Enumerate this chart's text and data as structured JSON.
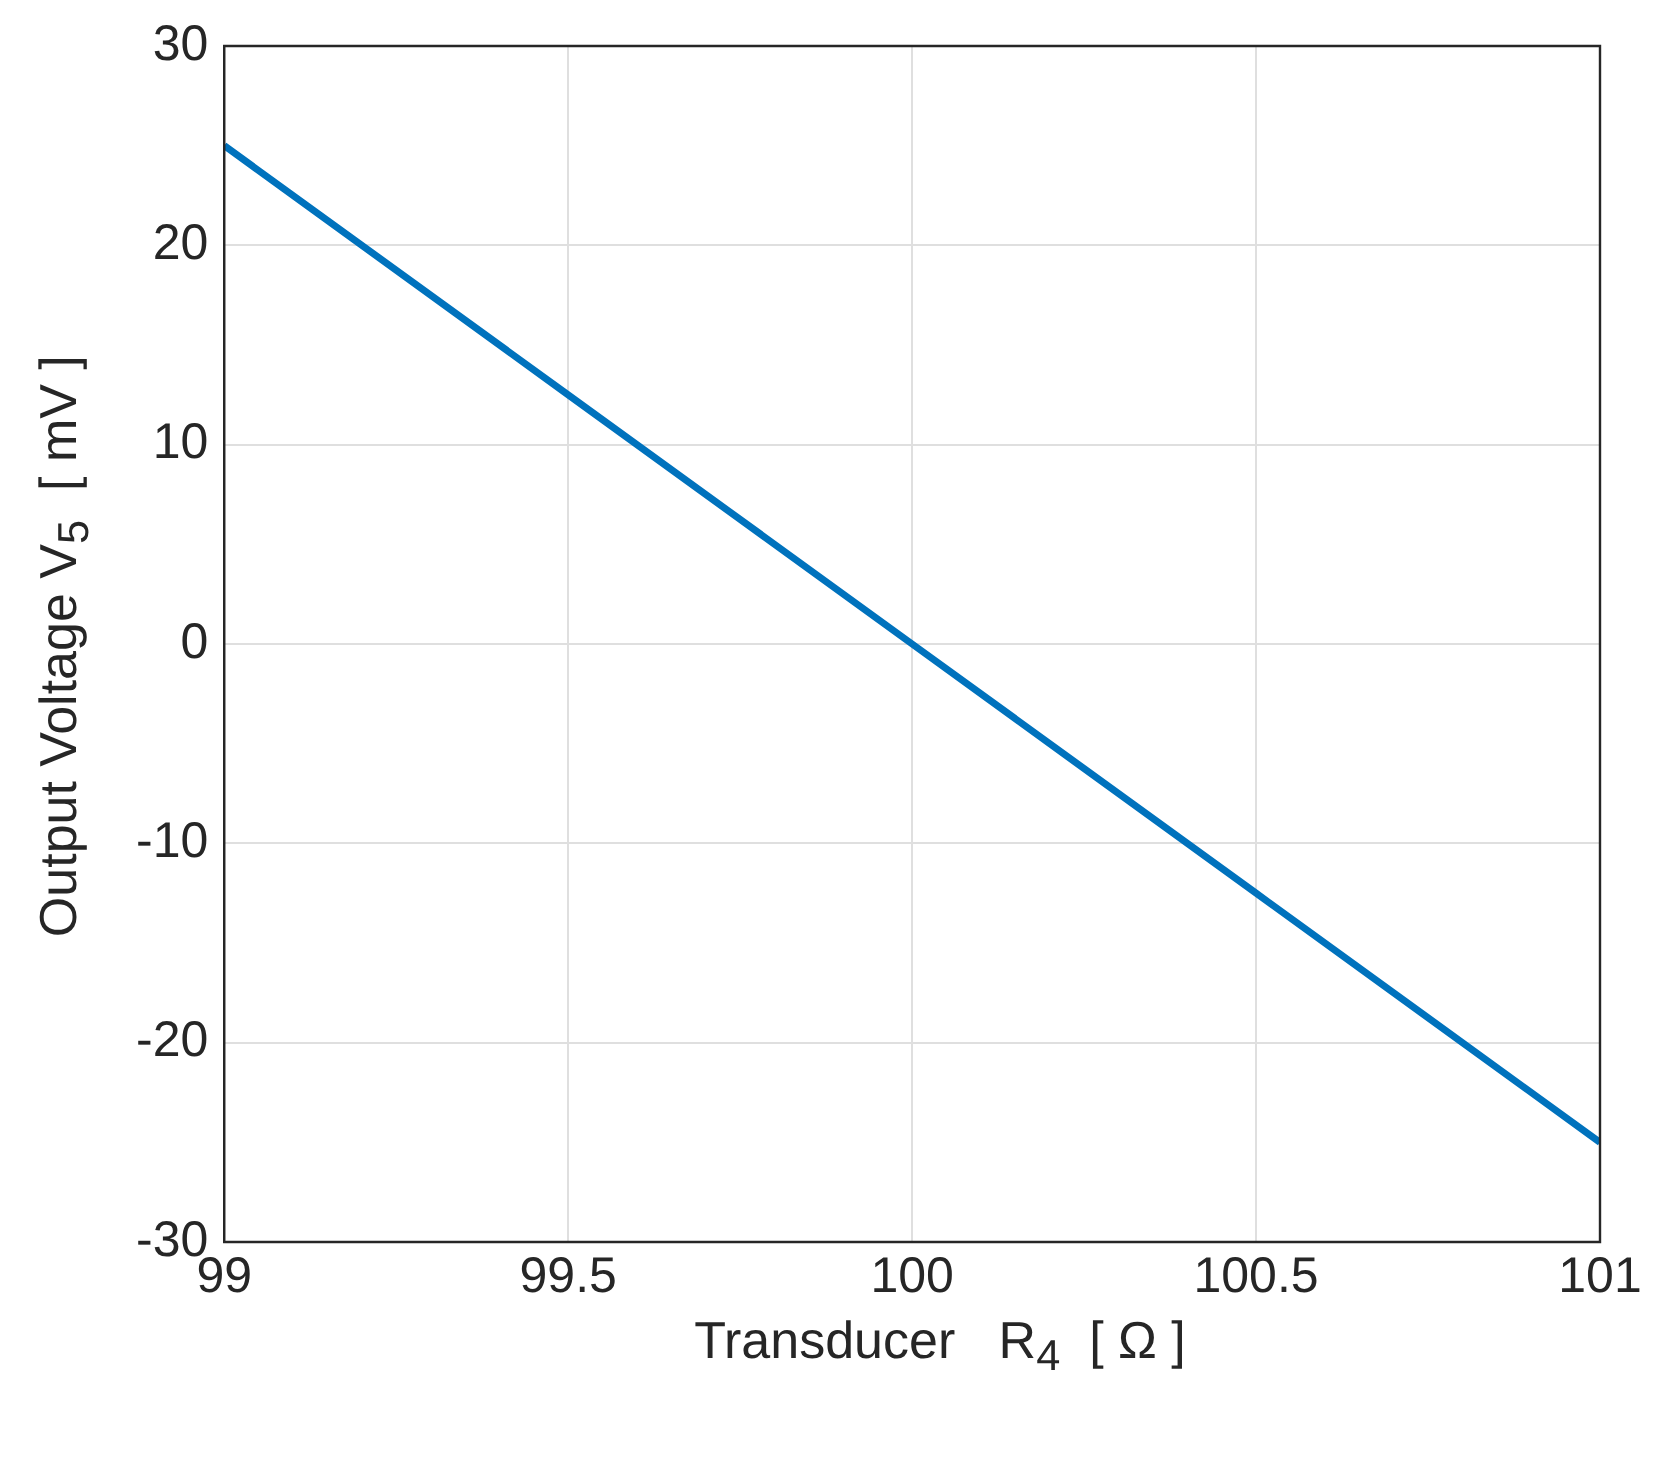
{
  "chart_data": {
    "type": "line",
    "xlabel": "Transducer   R$_{4}$  [ Ω ]",
    "ylabel": "Output Voltage V$_{5}$  [ mV ]",
    "x": [
      99,
      99.5,
      100,
      100.5,
      101
    ],
    "series": [
      {
        "color": "#0072bd",
        "values": [
          25,
          12.5,
          0,
          -12.5,
          -25
        ]
      }
    ],
    "xlim": [
      99,
      101
    ],
    "xticks": [
      99,
      99.5,
      100,
      100.5,
      101
    ],
    "ylim": [
      -30,
      30
    ],
    "yticks": [
      -30,
      -20,
      -10,
      0,
      10,
      20,
      30
    ],
    "grid": true,
    "legend": false,
    "marker": "none",
    "line_style": "solid"
  }
}
